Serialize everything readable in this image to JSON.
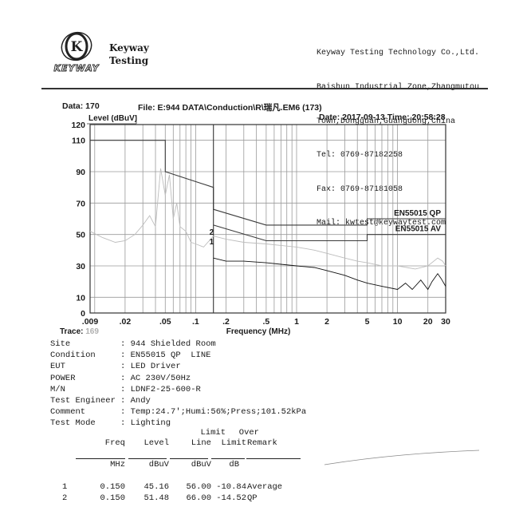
{
  "company": {
    "name_line1": "Keyway",
    "name_line2": "Testing",
    "logo_letter": "K",
    "logo_word": "KEYWAY",
    "contact": [
      "Keyway Testing Technology Co.,Ltd.",
      "Baishun Industrial Zone,Zhangmutou",
      "Town,Dongguan,Guangdong,China",
      "Tel: 0769-87182258",
      "Fax: 0769-87181058",
      "Mail: kwtest@keywaytest.com"
    ]
  },
  "report": {
    "data_no": "Data: 170",
    "file": "File: E:944 DATA\\Conduction\\R\\瑞凡.EM6  (173)",
    "date_time": "Date: 2017-09-13  Time: 20:58:28",
    "trace_label": "Trace:",
    "trace_num": "169"
  },
  "chart_data": {
    "type": "line",
    "ylabel": "Level (dBuV)",
    "xlabel": "Frequency (MHz)",
    "x_scale": "log",
    "xlim": [
      0.009,
      30
    ],
    "ylim": [
      0,
      120
    ],
    "x_ticks": [
      {
        "v": 0.009,
        "t": ".009"
      },
      {
        "v": 0.02,
        "t": ".02"
      },
      {
        "v": 0.05,
        "t": ".05"
      },
      {
        "v": 0.1,
        "t": ".1"
      },
      {
        "v": 0.2,
        "t": ".2"
      },
      {
        "v": 0.5,
        "t": ".5"
      },
      {
        "v": 1,
        "t": "1"
      },
      {
        "v": 2,
        "t": "2"
      },
      {
        "v": 5,
        "t": "5"
      },
      {
        "v": 10,
        "t": "10"
      },
      {
        "v": 20,
        "t": "20"
      },
      {
        "v": 30,
        "t": "30"
      }
    ],
    "y_ticks": [
      0,
      10,
      30,
      50,
      70,
      90,
      110,
      120
    ],
    "grid": true,
    "series": [
      {
        "name": "EN55015 QP",
        "color": "#3a3a3a",
        "x": [
          0.009,
          0.05,
          0.05,
          0.15,
          0.15,
          0.5,
          5,
          5,
          30
        ],
        "y": [
          110,
          110,
          90,
          80,
          66,
          56,
          56,
          60,
          60
        ]
      },
      {
        "name": "EN55015 AV",
        "color": "#3a3a3a",
        "x": [
          0.15,
          0.5,
          5,
          5,
          30
        ],
        "y": [
          56,
          46,
          46,
          50,
          50
        ]
      },
      {
        "color": "#bdbdbd",
        "x": [
          0.009,
          0.012,
          0.016,
          0.02,
          0.025,
          0.03,
          0.035,
          0.04,
          0.045,
          0.05,
          0.055,
          0.06,
          0.065,
          0.07,
          0.08,
          0.09,
          0.1,
          0.12,
          0.15,
          0.2,
          0.3,
          0.5,
          0.7,
          1,
          1.5,
          2,
          3,
          4,
          5,
          7,
          10,
          15,
          20,
          25,
          28,
          30
        ],
        "y": [
          52,
          48,
          45,
          46,
          50,
          56,
          62,
          55,
          92,
          75,
          88,
          60,
          70,
          55,
          52,
          45,
          44,
          42,
          49,
          47,
          45,
          44,
          43,
          42,
          40,
          38,
          35,
          33,
          32,
          30,
          30,
          28,
          30,
          35,
          33,
          30
        ]
      },
      {
        "color": "#111111",
        "x": [
          0.15,
          0.2,
          0.3,
          0.5,
          0.7,
          1,
          1.5,
          2,
          3,
          4,
          5,
          7,
          10,
          12,
          14,
          17,
          20,
          22,
          25,
          27,
          30
        ],
        "y": [
          35,
          33,
          33,
          32,
          31,
          30,
          29,
          27,
          24,
          21,
          19,
          17,
          15,
          19,
          15,
          21,
          15,
          20,
          25,
          22,
          17
        ]
      }
    ],
    "markers": [
      {
        "label": "1",
        "x": 0.15,
        "y": 45.16
      },
      {
        "label": "2",
        "x": 0.15,
        "y": 51.48
      }
    ],
    "legend_labels": [
      "EN55015 QP",
      "EN55015 AV"
    ]
  },
  "info": [
    {
      "key": "Site",
      "value": "944 Shielded Room"
    },
    {
      "key": "Condition",
      "value": "EN55015 QP  LINE"
    },
    {
      "key": "EUT",
      "value": "LED Driver"
    },
    {
      "key": "POWER",
      "value": "AC 230V/50Hz"
    },
    {
      "key": "M/N",
      "value": "LDNF2-25-600-R"
    },
    {
      "key": "Test Engineer",
      "value": "Andy"
    },
    {
      "key": "Comment",
      "value": "Temp:24.7';Humi:56%;Press;101.52kPa"
    },
    {
      "key": "Test Mode",
      "value": "Lighting"
    }
  ],
  "info_sep": ": ",
  "results": {
    "header_top": {
      "limit": "Limit",
      "over": "Over"
    },
    "header": {
      "freq": "Freq",
      "level": "Level",
      "limit": "Line",
      "over": "Limit",
      "remark": "Remark"
    },
    "units": {
      "freq": "MHz",
      "level": "dBuV",
      "limit": "dBuV",
      "over": "dB"
    },
    "rows": [
      {
        "no": "1",
        "freq": "0.150",
        "level": "45.16",
        "limit": "56.00",
        "over": "-10.84",
        "remark": "Average"
      },
      {
        "no": "2",
        "freq": "0.150",
        "level": "51.48",
        "limit": "66.00",
        "over": "-14.52",
        "remark": "QP"
      }
    ]
  }
}
